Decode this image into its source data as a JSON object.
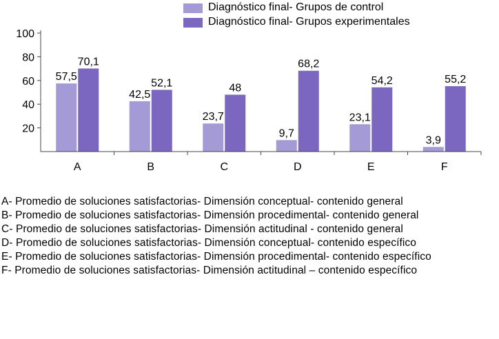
{
  "chart_data": {
    "type": "bar",
    "title": "",
    "xlabel": "",
    "ylabel": "",
    "ylim": [
      0,
      100
    ],
    "yticks": [
      20,
      40,
      60,
      80,
      100
    ],
    "categories": [
      "A",
      "B",
      "C",
      "D",
      "E",
      "F"
    ],
    "series": [
      {
        "name": "Diagnóstico final- Grupos de control",
        "color": "#a49ad6",
        "values": [
          57.5,
          42.5,
          23.7,
          9.7,
          23.1,
          3.9
        ],
        "labels": [
          "57,5",
          "42,5",
          "23,7",
          "9,7",
          "23,1",
          "3,9"
        ]
      },
      {
        "name": "Diagnóstico final- Grupos experimentales",
        "color": "#7c67c0",
        "values": [
          70.1,
          52.1,
          48,
          68.2,
          54.2,
          55.2
        ],
        "labels": [
          "70,1",
          "52,1",
          "48",
          "68,2",
          "54,2",
          "55,2"
        ]
      }
    ],
    "legend_position": "top-right",
    "grid": false
  },
  "notes": [
    "A- Promedio de soluciones satisfactorias- Dimensión conceptual- contenido general",
    "B- Promedio de soluciones satisfactorias- Dimensión procedimental- contenido general",
    "C- Promedio de soluciones satisfactorias- Dimensión actitudinal - contenido general",
    "D- Promedio de soluciones satisfactorias- Dimensión conceptual- contenido específico",
    "E- Promedio de soluciones satisfactorias- Dimensión procedimental- contenido específico",
    "F- Promedio de soluciones satisfactorias- Dimensión actitudinal – contenido específico"
  ]
}
